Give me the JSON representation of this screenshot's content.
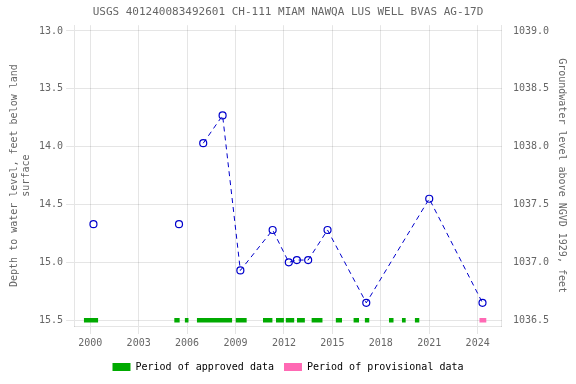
{
  "chart_data": {
    "type": "line",
    "title": "USGS 401240083492601 CH-111 MIAM NAWQA LUS WELL BVAS AG-17D",
    "ylabel": "Depth to water level, feet below land\nsurface",
    "y2label": "Groundwater level above NGVD 1929, feet",
    "xlim": [
      1999.0,
      2025.5
    ],
    "xticks": [
      2000,
      2003,
      2006,
      2009,
      2012,
      2015,
      2018,
      2021,
      2024
    ],
    "ylim": [
      15.55,
      12.95
    ],
    "yticks": [
      {
        "value": 13.0,
        "label": "13.0"
      },
      13.5,
      {
        "value": 14.0,
        "label": "14.0"
      },
      14.5,
      {
        "value": 15.0,
        "label": "15.0"
      },
      15.5
    ],
    "y2lim": [
      1036.45,
      1039.05
    ],
    "y2ticks": [
      1036.5,
      {
        "value": 1037.0,
        "label": "1037.0"
      },
      1037.5,
      {
        "value": 1038.0,
        "label": "1038.0"
      },
      1038.5,
      {
        "value": 1039.0,
        "label": "1039.0"
      }
    ],
    "grid": true,
    "legend": "bottom",
    "series": [
      {
        "x": [
          2000.2
        ],
        "values": [
          14.67
        ],
        "color": "#0000cc",
        "marker": "circle",
        "line_style": "dashed"
      },
      {
        "x": [
          2005.5
        ],
        "values": [
          14.67
        ],
        "color": "#0000cc",
        "marker": "circle",
        "line_style": "dashed"
      },
      {
        "x": [
          2007.0,
          2008.2,
          2009.3,
          2011.3,
          2012.3,
          2012.8,
          2013.5,
          2014.7,
          2017.1,
          2021.0,
          2024.3
        ],
        "values": [
          13.97,
          13.73,
          15.07,
          14.72,
          15.0,
          14.98,
          14.98,
          14.72,
          15.35,
          14.45,
          15.35
        ],
        "color": "#0000cc",
        "marker": "circle",
        "line_style": "dashed"
      },
      {
        "name": "Period of approved data",
        "type": "band",
        "color": "#00aa00",
        "x_ranges": [
          [
            1999.6,
            2000.5
          ],
          [
            2005.2,
            2005.55
          ],
          [
            2005.85,
            2006.1
          ],
          [
            2006.6,
            2008.8
          ],
          [
            2009.0,
            2009.7
          ],
          [
            2010.7,
            2011.3
          ],
          [
            2011.5,
            2012.0
          ],
          [
            2012.1,
            2012.65
          ],
          [
            2012.8,
            2013.3
          ],
          [
            2013.7,
            2014.4
          ],
          [
            2015.2,
            2015.6
          ],
          [
            2016.3,
            2016.65
          ],
          [
            2017.0,
            2017.3
          ],
          [
            2018.5,
            2018.8
          ],
          [
            2019.3,
            2019.55
          ],
          [
            2020.1,
            2020.4
          ]
        ],
        "y_range": [
          15.48,
          15.52
        ]
      },
      {
        "name": "Period of provisional data",
        "type": "band",
        "color": "#ff69b4",
        "x_ranges": [
          [
            2024.1,
            2024.55
          ]
        ],
        "y_range": [
          15.48,
          15.52
        ]
      }
    ]
  }
}
